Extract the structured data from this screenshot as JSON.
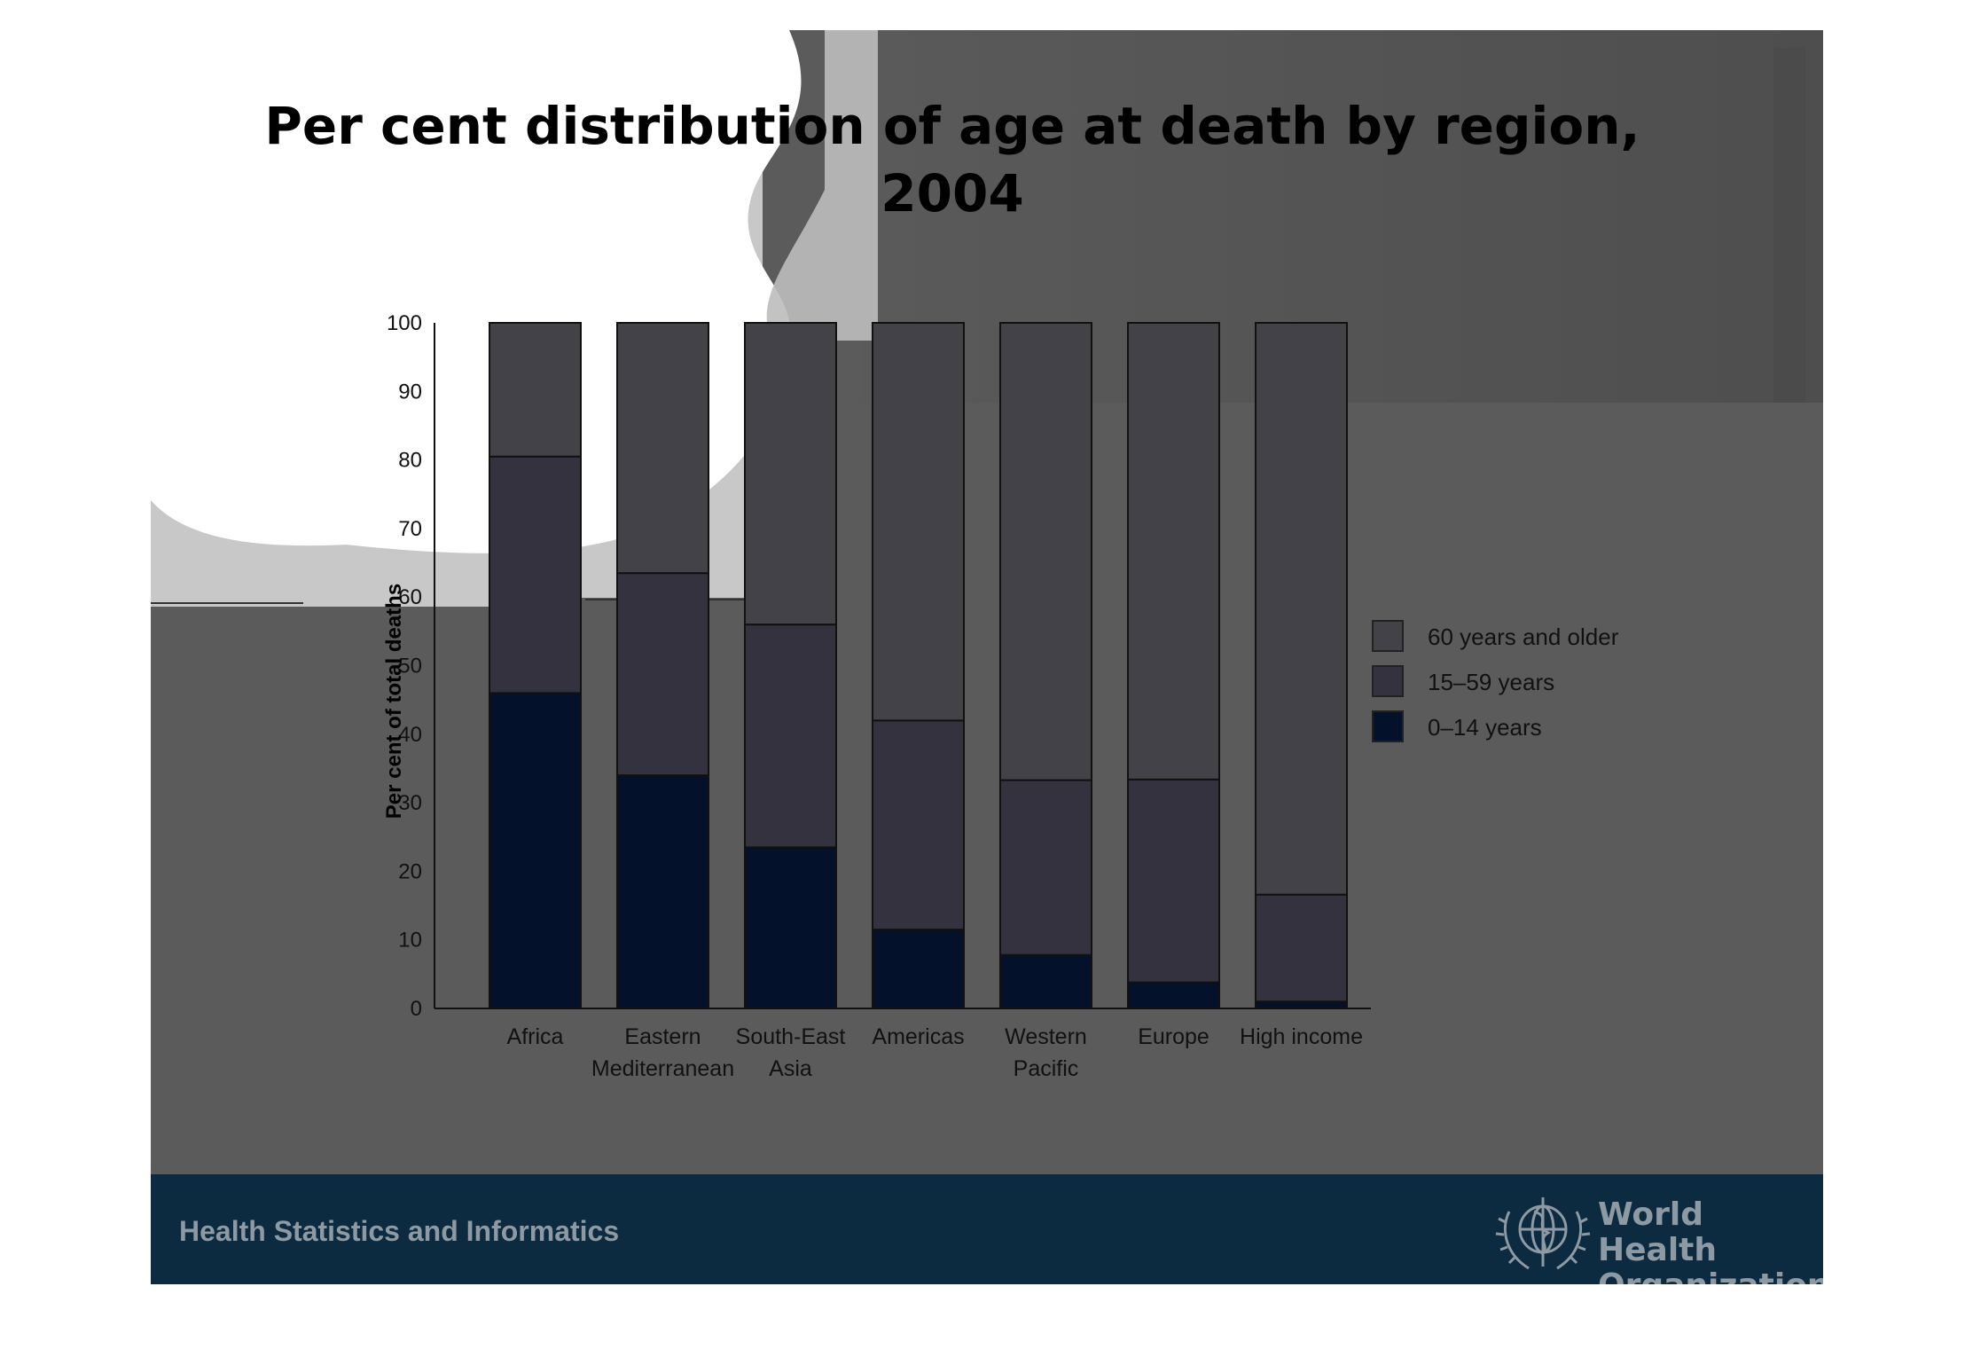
{
  "slide": {
    "title_line1": "Per cent distribution of age at death by region,",
    "title_line2": "2004",
    "footer_text": "Health Statistics and Informatics",
    "logo_text": [
      "World Health",
      "Organization"
    ]
  },
  "chart_data": {
    "type": "bar",
    "stacked": true,
    "title": "Per cent distribution of age at death by region, 2004",
    "xlabel": "",
    "ylabel": "Per cent of total deaths",
    "ylim": [
      0,
      100
    ],
    "yticks": [
      0,
      10,
      20,
      30,
      40,
      50,
      60,
      70,
      80,
      90,
      100
    ],
    "categories": [
      [
        "Africa"
      ],
      [
        "Eastern",
        "Mediterranean"
      ],
      [
        "South-East",
        "Asia"
      ],
      [
        "Americas"
      ],
      [
        "Western",
        "Pacific"
      ],
      [
        "Europe"
      ],
      [
        "High income"
      ]
    ],
    "series": [
      {
        "name": "0–14 years",
        "color": "#03112a",
        "values": [
          46,
          34,
          23.5,
          11.5,
          7.8,
          3.8,
          1
        ]
      },
      {
        "name": "15–59 years",
        "color": "#34323e",
        "values": [
          34.5,
          29.5,
          32.5,
          30.5,
          25.5,
          29.6,
          15.6
        ]
      },
      {
        "name": "60 years and older",
        "color": "#434249",
        "values": [
          19.5,
          36.5,
          44,
          58,
          66.7,
          66.6,
          83.4
        ]
      }
    ],
    "legend": {
      "position": "right",
      "order": [
        "60 years and older",
        "15–59 years",
        "0–14 years"
      ]
    }
  }
}
